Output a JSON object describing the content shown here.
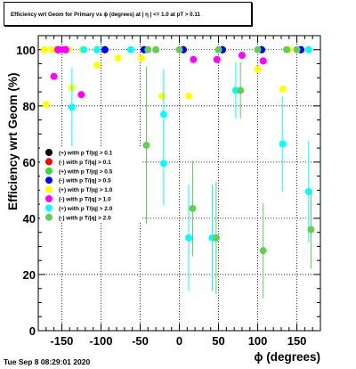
{
  "title": "Efficiency wrt Geom for Primary vs ϕ (degrees) at | η | <= 1.0 at pT > 0.11",
  "timestamp": "Tue Sep  8 08:29:01 2020",
  "chart_data": {
    "type": "scatter",
    "xlabel": "ϕ (degrees)",
    "ylabel": "Efficiency wrt Geom (%)",
    "xlim": [
      -180,
      180
    ],
    "ylim": [
      0,
      105
    ],
    "xticks": [
      -150,
      -100,
      -50,
      0,
      50,
      100,
      150
    ],
    "yticks": [
      0,
      20,
      40,
      60,
      80,
      100
    ],
    "grid": true,
    "legend_position": "left-middle",
    "series": [
      {
        "name": "(+) with p T/|q| > 0.1",
        "color": "#000000",
        "points": [
          [
            -155,
            100
          ],
          [
            -145,
            100
          ],
          [
            -95,
            100
          ],
          [
            -45,
            100
          ],
          [
            5,
            100
          ],
          [
            55,
            100
          ],
          [
            105,
            100
          ],
          [
            155,
            100
          ]
        ]
      },
      {
        "name": "(-) with p T/|q| > 0.1",
        "color": "#ff0000",
        "points": [
          [
            -155,
            100
          ],
          [
            -145,
            100
          ],
          [
            -95,
            100
          ],
          [
            -45,
            100
          ],
          [
            5,
            100
          ],
          [
            55,
            100
          ],
          [
            105,
            100
          ],
          [
            155,
            100
          ]
        ]
      },
      {
        "name": "(+) with p T/|q| > 0.5",
        "color": "#33dd33",
        "points": [
          [
            -155,
            100
          ],
          [
            -145,
            100
          ],
          [
            -95,
            100
          ],
          [
            -45,
            100
          ],
          [
            5,
            100
          ],
          [
            55,
            100
          ],
          [
            105,
            100
          ],
          [
            155,
            100
          ]
        ]
      },
      {
        "name": "(-) with p T/|q| > 0.5",
        "color": "#0000ff",
        "points": [
          [
            -155,
            100
          ],
          [
            -145,
            100
          ],
          [
            -95,
            100
          ],
          [
            -45,
            100
          ],
          [
            5,
            100
          ],
          [
            55,
            100
          ],
          [
            105,
            100
          ],
          [
            155,
            100
          ]
        ]
      },
      {
        "name": "(+) with p T/|q| > 1.0",
        "color": "#ffff00",
        "points": [
          [
            -172,
            100,
            0
          ],
          [
            -170,
            80.5,
            0
          ],
          [
            -162,
            100,
            0
          ],
          [
            -142,
            100,
            0
          ],
          [
            -137,
            86.5,
            0
          ],
          [
            -124,
            100,
            0
          ],
          [
            -105,
            94.5,
            0
          ],
          [
            -105,
            100,
            0
          ],
          [
            -78,
            97,
            0
          ],
          [
            -48,
            97,
            0
          ],
          [
            -22,
            83.5,
            0
          ],
          [
            12,
            83.5,
            0
          ],
          [
            100,
            93,
            0
          ],
          [
            132,
            86,
            0
          ],
          [
            140,
            100,
            0
          ]
        ]
      },
      {
        "name": "(-) with p T/|q| > 1.0",
        "color": "#ff00ff",
        "points": [
          [
            -160,
            90.5,
            0
          ],
          [
            -155,
            100,
            0
          ],
          [
            -150,
            100,
            0
          ],
          [
            -145,
            100,
            0
          ],
          [
            -125,
            84,
            0
          ],
          [
            18,
            96.5,
            0
          ],
          [
            48,
            96.5,
            0
          ],
          [
            80,
            98,
            0
          ],
          [
            107,
            96,
            0
          ]
        ]
      },
      {
        "name": "(+) with p T/|q| > 2.0",
        "color": "#00ffff",
        "points": [
          [
            -137,
            79.5,
            14
          ],
          [
            -122,
            100,
            0
          ],
          [
            -105,
            100,
            0
          ],
          [
            -62,
            100,
            0
          ],
          [
            -20,
            77,
            16
          ],
          [
            -20,
            59.5,
            15
          ],
          [
            12,
            33,
            19
          ],
          [
            42,
            33,
            19
          ],
          [
            72,
            85.5,
            10
          ],
          [
            132,
            66.5,
            17
          ],
          [
            165,
            49.5,
            18
          ],
          [
            165,
            100,
            0
          ]
        ]
      },
      {
        "name": "(-) with p T/|q| > 2.0",
        "color": "#66cc55",
        "points": [
          [
            -40,
            100,
            0
          ],
          [
            -30,
            100,
            0
          ],
          [
            0,
            100,
            0
          ],
          [
            50,
            100,
            0
          ],
          [
            100,
            100,
            0
          ],
          [
            150,
            100,
            0
          ],
          [
            -42,
            66,
            28
          ],
          [
            17,
            43.5,
            17
          ],
          [
            47,
            33,
            20
          ],
          [
            78,
            85.5,
            10
          ],
          [
            107,
            28.5,
            17
          ],
          [
            137,
            100,
            0
          ],
          [
            168,
            36,
            14
          ]
        ]
      }
    ]
  }
}
